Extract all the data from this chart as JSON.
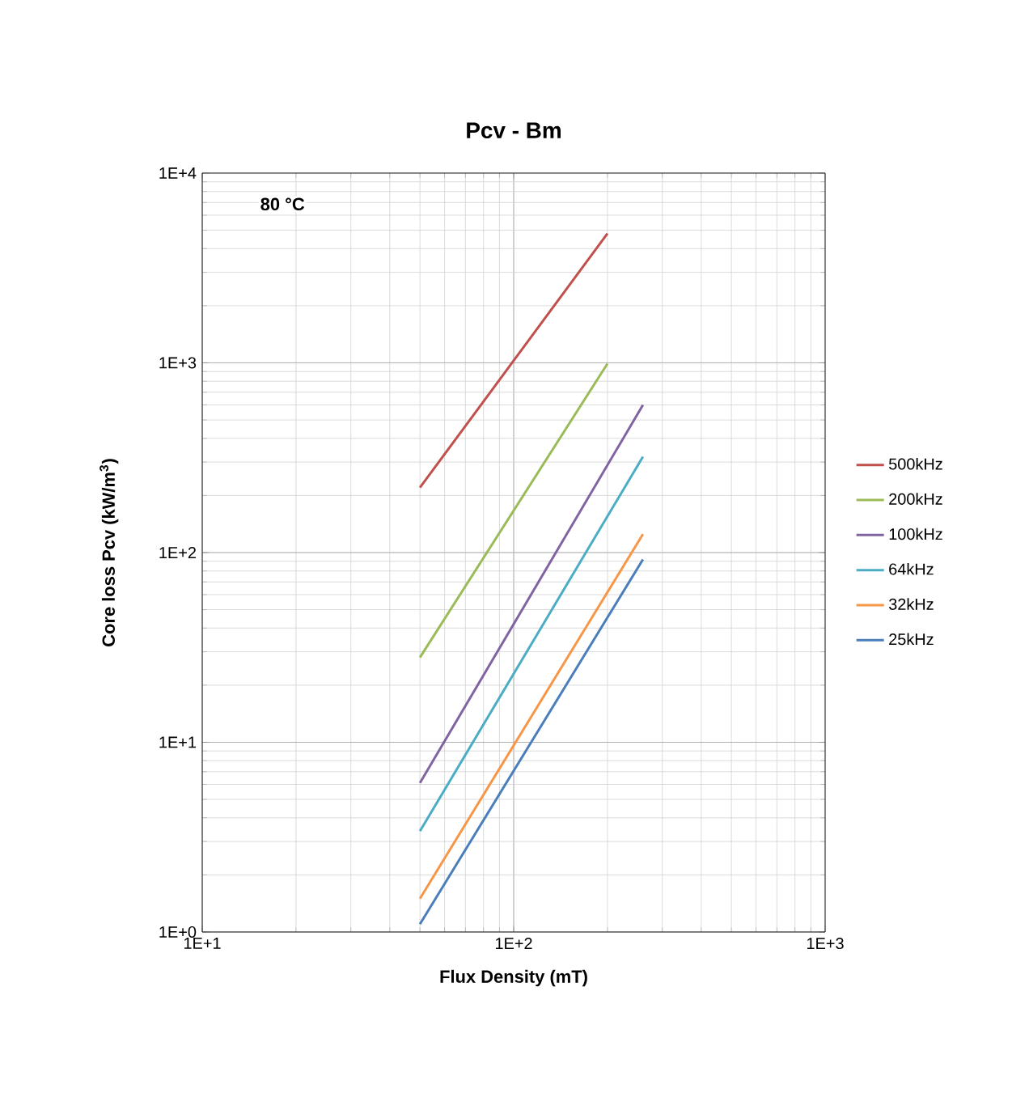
{
  "chart_data": {
    "type": "line",
    "title": "Pcv - Bm",
    "xlabel": "Flux Density (mT)",
    "ylabel": "Core loss Pcv (kW/m$^{3}$)",
    "annotations": [
      "**80 °C**"
    ],
    "log": "xy",
    "grid": true,
    "legend": "right",
    "marker": "none",
    "line_style": "solid",
    "xlim": [
      10,
      1000
    ],
    "ylim": [
      1,
      10000
    ],
    "xticks": [
      {
        "value": 10,
        "label": "1E+1"
      },
      {
        "value": 100,
        "label": "1E+2"
      },
      {
        "value": 1000,
        "label": "1E+3"
      }
    ],
    "yticks": [
      {
        "value": 1,
        "label": "1E+0"
      },
      {
        "value": 10,
        "label": "1E+1"
      },
      {
        "value": 100,
        "label": "1E+2"
      },
      {
        "value": 1000,
        "label": "1E+3"
      },
      {
        "value": 10000,
        "label": "1E+4"
      }
    ],
    "series": [
      {
        "name": "500kHz",
        "color": "#c0504d",
        "x": [
          50,
          200
        ],
        "values": [
          220,
          4800
        ]
      },
      {
        "name": "200kHz",
        "color": "#9bbb59",
        "x": [
          50,
          200
        ],
        "values": [
          28,
          990
        ]
      },
      {
        "name": "100kHz",
        "color": "#8064a2",
        "x": [
          50,
          260
        ],
        "values": [
          6.1,
          600
        ]
      },
      {
        "name": "64kHz",
        "color": "#4bacc6",
        "x": [
          50,
          260
        ],
        "values": [
          3.4,
          320
        ]
      },
      {
        "name": "32kHz",
        "color": "#f79646",
        "x": [
          50,
          260
        ],
        "values": [
          1.5,
          125
        ]
      },
      {
        "name": "25kHz",
        "color": "#4a7ebb",
        "x": [
          50,
          260
        ],
        "values": [
          1.1,
          92
        ]
      }
    ]
  }
}
